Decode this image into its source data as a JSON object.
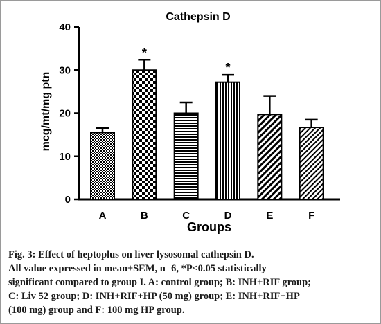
{
  "chart_data": {
    "type": "bar",
    "title": "Cathepsin D",
    "xlabel": "Groups",
    "ylabel": "mcg/mt/mg ptn",
    "ylim": [
      0,
      40
    ],
    "yticks": [
      0,
      10,
      20,
      30,
      40
    ],
    "categories": [
      "A",
      "B",
      "C",
      "D",
      "E",
      "F"
    ],
    "values": [
      15.5,
      30,
      20,
      27.2,
      19.7,
      16.7
    ],
    "errors": [
      1.0,
      2.4,
      2.5,
      1.7,
      4.3,
      1.8
    ],
    "significance": [
      "",
      "*",
      "",
      "*",
      "",
      ""
    ],
    "patterns": [
      "fine-checker",
      "coarse-checker",
      "horizontal-stripes",
      "vertical-stripes",
      "diagonal-stripes",
      "diagonal-fine"
    ],
    "grid": false,
    "legend": "none"
  },
  "caption": {
    "line1": "Fig. 3: Effect of heptoplus on liver lysosomal cathepsin D.",
    "line2": "All value expressed in mean±SEM, n=6, *P≤0.05 statistically",
    "line3": "significant compared to group I. A: control group; B: INH+RIF group;",
    "line4": "C: Liv 52 group; D: INH+RIF+HP (50 mg) group; E: INH+RIF+HP",
    "line5": "(100 mg) group and F: 100 mg HP group."
  }
}
